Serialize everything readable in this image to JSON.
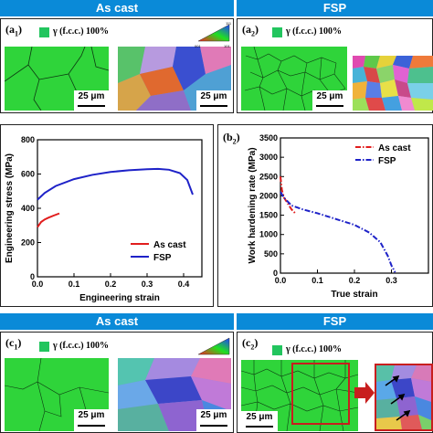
{
  "headers": {
    "top_left": "As cast",
    "top_right": "FSP",
    "bottom_left": "As cast",
    "bottom_right": "FSP"
  },
  "panels": {
    "a1": {
      "label": "(a",
      "sub": "1",
      "phase": "γ (f.c.c.) 100%",
      "scale_left": "25 μm",
      "scale_right": "25 μm"
    },
    "a2": {
      "label": "(a",
      "sub": "2",
      "phase": "γ (f.c.c.) 100%",
      "scale_left": "25 μm"
    },
    "b2": {
      "label": "(b",
      "sub": "2"
    },
    "c1": {
      "label": "(c",
      "sub": "1",
      "phase": "γ (f.c.c.) 100%",
      "scale_left": "25 μm",
      "scale_right": "25 μm"
    },
    "c2": {
      "label": "(c",
      "sub": "2",
      "phase": "γ (f.c.c.) 100%",
      "scale_left": "25 μm"
    }
  },
  "ipf_labels": {
    "top": "111",
    "left": "001",
    "right": "101"
  },
  "colors": {
    "header": "#0a8ad8",
    "fcc_phase": "#22c55e",
    "as_cast": "#e11d1d",
    "fsp": "#1e22c8",
    "callout": "#e11d1d"
  },
  "chart_data": [
    {
      "type": "line",
      "xlabel": "Engineering strain",
      "ylabel": "Engineering stress (MPa)",
      "xlim": [
        0,
        0.45
      ],
      "ylim": [
        0,
        800
      ],
      "xticks": [
        "0.0",
        "0.1",
        "0.2",
        "0.3",
        "0.4"
      ],
      "yticks": [
        "0",
        "200",
        "400",
        "600",
        "800"
      ],
      "legend": "bottom-right",
      "series": [
        {
          "name": "As cast",
          "color": "#e11d1d",
          "dash": "solid",
          "x": [
            0.0,
            0.01,
            0.02,
            0.03,
            0.045,
            0.06
          ],
          "y": [
            290,
            320,
            335,
            345,
            358,
            370
          ]
        },
        {
          "name": "FSP",
          "color": "#1e22c8",
          "dash": "solid",
          "x": [
            0.0,
            0.02,
            0.05,
            0.1,
            0.15,
            0.2,
            0.25,
            0.3,
            0.33,
            0.36,
            0.39,
            0.41,
            0.425
          ],
          "y": [
            450,
            490,
            530,
            570,
            595,
            612,
            622,
            628,
            630,
            625,
            605,
            565,
            480
          ]
        }
      ]
    },
    {
      "type": "line",
      "xlabel": "True strain",
      "ylabel": "Work hardening rate (MPa)",
      "xlim": [
        0,
        0.4
      ],
      "ylim": [
        0,
        3500
      ],
      "xticks": [
        "0.0",
        "0.1",
        "0.2",
        "0.3"
      ],
      "yticks": [
        "0",
        "500",
        "1000",
        "1500",
        "2000",
        "2500",
        "3000",
        "3500"
      ],
      "legend": "top-right",
      "series": [
        {
          "name": "As cast",
          "color": "#e11d1d",
          "dash": "dashdot",
          "x": [
            0.0,
            0.004,
            0.01,
            0.02,
            0.03,
            0.04
          ],
          "y": [
            2500,
            2150,
            1950,
            1800,
            1650,
            1550
          ]
        },
        {
          "name": "FSP",
          "color": "#1e22c8",
          "dash": "dashdot",
          "x": [
            0.0,
            0.01,
            0.03,
            0.06,
            0.1,
            0.15,
            0.2,
            0.24,
            0.27,
            0.29,
            0.3,
            0.31
          ],
          "y": [
            2100,
            1950,
            1750,
            1650,
            1550,
            1400,
            1250,
            1050,
            800,
            450,
            200,
            20
          ]
        }
      ]
    }
  ]
}
